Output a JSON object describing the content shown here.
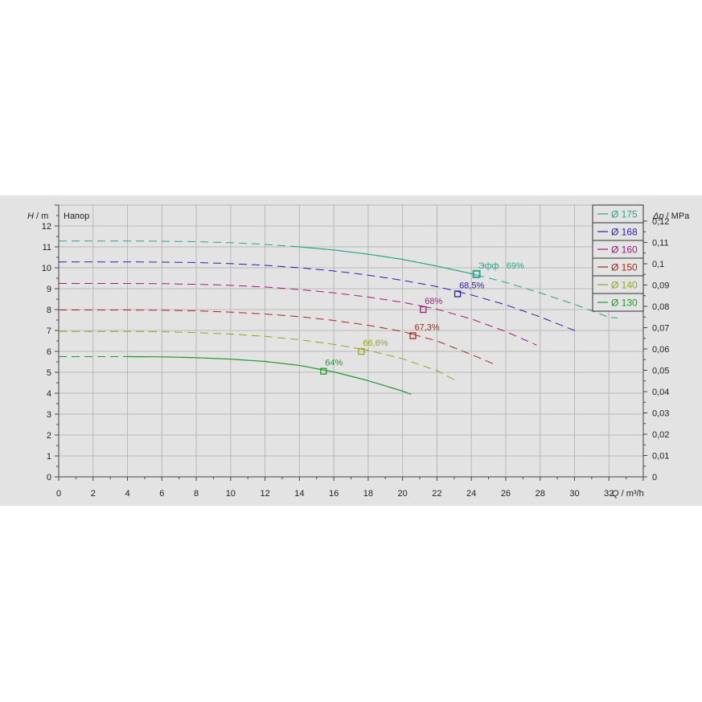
{
  "chart_data": {
    "type": "line",
    "title": "Напор",
    "ylabel_var": "H",
    "ylabel_unit": " / m",
    "y2label_var": "Δp",
    "y2label_unit": " / MPa",
    "xlabel_var": "Q",
    "xlabel_unit": " / m³/h",
    "xlim": [
      0,
      34
    ],
    "ylim": [
      0,
      13
    ],
    "x_ticks": [
      "0",
      "2",
      "4",
      "6",
      "8",
      "10",
      "12",
      "14",
      "16",
      "18",
      "20",
      "22",
      "24",
      "26",
      "28",
      "30",
      "32"
    ],
    "y_ticks": [
      "0",
      "1",
      "2",
      "3",
      "4",
      "5",
      "6",
      "7",
      "8",
      "9",
      "10",
      "11",
      "12"
    ],
    "y2_ticks": [
      "0",
      "0,01",
      "0,02",
      "0,03",
      "0,04",
      "0,05",
      "0,06",
      "0,07",
      "0,08",
      "0,09",
      "0,1",
      "0,11",
      "0,12"
    ],
    "grid": true,
    "legend_position": "top-right",
    "series": [
      {
        "name": "Ø 175",
        "color": "#2aa58c",
        "x": [
          0,
          2,
          4,
          6,
          8,
          10,
          12,
          14,
          16,
          18,
          20,
          22,
          24,
          26,
          28,
          30,
          32,
          32.5
        ],
        "y": [
          11.28,
          11.28,
          11.28,
          11.27,
          11.25,
          11.2,
          11.12,
          11.0,
          10.85,
          10.65,
          10.4,
          10.08,
          9.72,
          9.3,
          8.8,
          8.25,
          7.63,
          7.6
        ],
        "solid_from": 13.5,
        "solid_to": 24.3,
        "bep": {
          "x": 24.3,
          "y": 9.7,
          "label": "Эфф   69%"
        }
      },
      {
        "name": "Ø 168",
        "color": "#2a1fa8",
        "x": [
          0,
          2,
          4,
          6,
          8,
          10,
          12,
          14,
          16,
          18,
          20,
          22,
          24,
          26,
          28,
          30,
          30.2
        ],
        "y": [
          10.28,
          10.28,
          10.28,
          10.27,
          10.25,
          10.2,
          10.12,
          10.0,
          9.85,
          9.65,
          9.4,
          9.1,
          8.7,
          8.23,
          7.65,
          7.0,
          6.95
        ],
        "bep": {
          "x": 23.2,
          "y": 8.75,
          "label": "68,5%"
        }
      },
      {
        "name": "Ø 160",
        "color": "#a4197c",
        "x": [
          0,
          2,
          4,
          6,
          8,
          10,
          12,
          14,
          16,
          18,
          20,
          22,
          24,
          26,
          27.8
        ],
        "y": [
          9.25,
          9.25,
          9.25,
          9.24,
          9.21,
          9.16,
          9.08,
          8.96,
          8.8,
          8.6,
          8.35,
          8.02,
          7.55,
          6.95,
          6.3
        ],
        "bep": {
          "x": 21.2,
          "y": 8.0,
          "label": "68%"
        }
      },
      {
        "name": "Ø 150",
        "color": "#a52a18",
        "x": [
          0,
          2,
          4,
          6,
          8,
          10,
          12,
          14,
          16,
          18,
          20,
          22,
          24,
          25.3
        ],
        "y": [
          7.98,
          7.98,
          7.98,
          7.97,
          7.94,
          7.88,
          7.79,
          7.66,
          7.48,
          7.25,
          6.95,
          6.5,
          5.85,
          5.4
        ],
        "bep": {
          "x": 20.6,
          "y": 6.75,
          "label": "67,3%"
        }
      },
      {
        "name": "Ø 140",
        "color": "#9aa51c",
        "x": [
          0,
          2,
          4,
          6,
          8,
          10,
          12,
          14,
          16,
          18,
          20,
          22,
          23
        ],
        "y": [
          6.95,
          6.95,
          6.95,
          6.94,
          6.9,
          6.83,
          6.72,
          6.56,
          6.34,
          6.05,
          5.65,
          5.08,
          4.65
        ],
        "bep": {
          "x": 17.6,
          "y": 6.0,
          "label": "66,6%"
        }
      },
      {
        "name": "Ø 130",
        "color": "#1e9a2c",
        "x": [
          0,
          2,
          4,
          6,
          8,
          10,
          12,
          14,
          16,
          18,
          20,
          20.5
        ],
        "y": [
          5.75,
          5.75,
          5.75,
          5.74,
          5.7,
          5.63,
          5.52,
          5.33,
          5.02,
          4.6,
          4.1,
          3.95
        ],
        "solid_from": 4.0,
        "solid_to": 20.5,
        "bep": {
          "x": 15.4,
          "y": 5.05,
          "label": "64%"
        }
      }
    ]
  }
}
